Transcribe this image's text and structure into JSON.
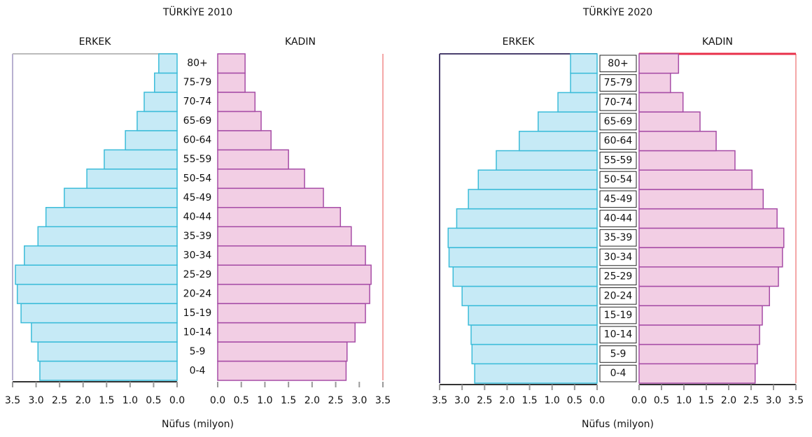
{
  "chart_data": [
    {
      "type": "pyramid",
      "title": "TÜRKİYE 2010",
      "xlabel": "Nüfus (milyon)",
      "categories": [
        "0-4",
        "5-9",
        "10-14",
        "15-19",
        "20-24",
        "25-29",
        "30-34",
        "35-39",
        "40-44",
        "45-49",
        "50-54",
        "55-59",
        "60-64",
        "65-69",
        "70-74",
        "75-79",
        "80+"
      ],
      "series": [
        {
          "name": "ERKEK",
          "color": "#c6eaf6",
          "values": [
            2.92,
            2.96,
            3.1,
            3.32,
            3.4,
            3.44,
            3.25,
            2.96,
            2.79,
            2.4,
            1.92,
            1.55,
            1.1,
            0.85,
            0.7,
            0.48,
            0.39
          ]
        },
        {
          "name": "KADIN",
          "color": "#f2cee4",
          "values": [
            2.72,
            2.74,
            2.91,
            3.13,
            3.22,
            3.25,
            3.13,
            2.83,
            2.6,
            2.24,
            1.84,
            1.5,
            1.13,
            0.92,
            0.79,
            0.58,
            0.58
          ]
        }
      ],
      "xlim": [
        0,
        3.5
      ],
      "xticks": [
        {
          "value": 0,
          "label": "0.0"
        },
        0.5,
        {
          "value": 1,
          "label": "1.0"
        },
        1.5,
        {
          "value": 2,
          "label": "2.0"
        },
        2.5,
        {
          "value": 3,
          "label": "3.0"
        },
        3.5
      ]
    },
    {
      "type": "pyramid",
      "title": "TÜRKİYE 2020",
      "xlabel": "Nüfus (milyon)",
      "categories": [
        "0-4",
        "5-9",
        "10-14",
        "15-19",
        "20-24",
        "25-29",
        "30-34",
        "35-39",
        "40-44",
        "45-49",
        "50-54",
        "55-59",
        "60-64",
        "65-69",
        "70-74",
        "75-79",
        "80+"
      ],
      "series": [
        {
          "name": "ERKEK",
          "color": "#c6eaf6",
          "values": [
            2.72,
            2.78,
            2.8,
            2.86,
            3.0,
            3.2,
            3.29,
            3.31,
            3.12,
            2.86,
            2.64,
            2.24,
            1.73,
            1.31,
            0.87,
            0.59,
            0.59
          ]
        },
        {
          "name": "KADIN",
          "color": "#f2cee4",
          "values": [
            2.59,
            2.64,
            2.69,
            2.75,
            2.91,
            3.11,
            3.2,
            3.23,
            3.08,
            2.77,
            2.52,
            2.14,
            1.72,
            1.36,
            0.98,
            0.7,
            0.88
          ]
        }
      ],
      "xlim": [
        0,
        3.5
      ],
      "xticks": [
        {
          "value": 0,
          "label": "0.0"
        },
        0.5,
        {
          "value": 1,
          "label": "1.0"
        },
        1.5,
        {
          "value": 2,
          "label": "2.0"
        },
        2.5,
        {
          "value": 3,
          "label": "3.0"
        },
        3.5
      ]
    }
  ]
}
